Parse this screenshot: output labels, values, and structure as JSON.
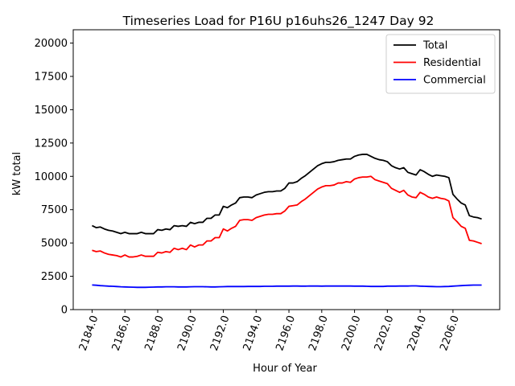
{
  "chart_data": {
    "type": "line",
    "title": "Timeseries Load for P16U p16uhs26_1247  Day 92",
    "xlabel": "Hour of Year",
    "ylabel": "kW total",
    "xlim": [
      2182.85,
      2208.85
    ],
    "ylim": [
      0,
      21000
    ],
    "xticks": [
      2184,
      2186,
      2188,
      2190,
      2192,
      2194,
      2196,
      2198,
      2200,
      2202,
      2204,
      2206
    ],
    "xtick_labels": [
      "2184.0",
      "2186.0",
      "2188.0",
      "2190.0",
      "2192.0",
      "2194.0",
      "2196.0",
      "2198.0",
      "2200.0",
      "2202.0",
      "2204.0",
      "2206.0"
    ],
    "yticks": [
      0,
      2500,
      5000,
      7500,
      10000,
      12500,
      15000,
      17500,
      20000
    ],
    "ytick_labels": [
      "0",
      "2500",
      "5000",
      "7500",
      "10000",
      "12500",
      "15000",
      "17500",
      "20000"
    ],
    "legend_position": "top-right",
    "grid": false,
    "x": [
      2184.0,
      2184.25,
      2184.5,
      2184.75,
      2185.0,
      2185.25,
      2185.5,
      2185.75,
      2186.0,
      2186.25,
      2186.5,
      2186.75,
      2187.0,
      2187.25,
      2187.5,
      2187.75,
      2188.0,
      2188.25,
      2188.5,
      2188.75,
      2189.0,
      2189.25,
      2189.5,
      2189.75,
      2190.0,
      2190.25,
      2190.5,
      2190.75,
      2191.0,
      2191.25,
      2191.5,
      2191.75,
      2192.0,
      2192.25,
      2192.5,
      2192.75,
      2193.0,
      2193.25,
      2193.5,
      2193.75,
      2194.0,
      2194.25,
      2194.5,
      2194.75,
      2195.0,
      2195.25,
      2195.5,
      2195.75,
      2196.0,
      2196.25,
      2196.5,
      2196.75,
      2197.0,
      2197.25,
      2197.5,
      2197.75,
      2198.0,
      2198.25,
      2198.5,
      2198.75,
      2199.0,
      2199.25,
      2199.5,
      2199.75,
      2200.0,
      2200.25,
      2200.5,
      2200.75,
      2201.0,
      2201.25,
      2201.5,
      2201.75,
      2202.0,
      2202.25,
      2202.5,
      2202.75,
      2203.0,
      2203.25,
      2203.5,
      2203.75,
      2204.0,
      2204.25,
      2204.5,
      2204.75,
      2205.0,
      2205.25,
      2205.5,
      2205.75,
      2206.0,
      2206.25,
      2206.5,
      2206.75,
      2207.0,
      2207.25,
      2207.5,
      2207.75
    ],
    "series": [
      {
        "name": "Total",
        "color": "#000000",
        "values": [
          6300,
          6150,
          6200,
          6050,
          5950,
          5900,
          5800,
          5700,
          5800,
          5700,
          5700,
          5700,
          5800,
          5700,
          5700,
          5700,
          6000,
          5950,
          6050,
          6000,
          6300,
          6250,
          6300,
          6250,
          6550,
          6450,
          6550,
          6550,
          6850,
          6850,
          7100,
          7100,
          7750,
          7650,
          7850,
          8000,
          8400,
          8450,
          8450,
          8400,
          8600,
          8700,
          8800,
          8850,
          8850,
          8900,
          8900,
          9100,
          9500,
          9500,
          9600,
          9850,
          10050,
          10300,
          10550,
          10800,
          10950,
          11050,
          11050,
          11100,
          11200,
          11250,
          11300,
          11300,
          11500,
          11600,
          11650,
          11650,
          11500,
          11350,
          11250,
          11200,
          11100,
          10800,
          10650,
          10550,
          10650,
          10300,
          10200,
          10100,
          10500,
          10350,
          10150,
          10000,
          10100,
          10050,
          10000,
          9900,
          8650,
          8300,
          8000,
          7850,
          7050,
          6950,
          6900,
          6800
        ]
      },
      {
        "name": "Residential",
        "color": "#ff0000",
        "values": [
          4450,
          4350,
          4400,
          4250,
          4150,
          4100,
          4050,
          3950,
          4100,
          3950,
          3950,
          4000,
          4100,
          4000,
          4000,
          4000,
          4300,
          4250,
          4350,
          4300,
          4600,
          4500,
          4600,
          4500,
          4850,
          4700,
          4850,
          4850,
          5150,
          5150,
          5400,
          5400,
          6050,
          5900,
          6100,
          6250,
          6700,
          6750,
          6750,
          6700,
          6900,
          7000,
          7100,
          7150,
          7150,
          7200,
          7200,
          7400,
          7750,
          7800,
          7850,
          8100,
          8300,
          8550,
          8800,
          9050,
          9200,
          9300,
          9300,
          9350,
          9500,
          9500,
          9600,
          9550,
          9800,
          9900,
          9950,
          9950,
          10000,
          9750,
          9650,
          9550,
          9450,
          9100,
          8950,
          8800,
          8950,
          8600,
          8450,
          8400,
          8800,
          8650,
          8450,
          8350,
          8450,
          8350,
          8300,
          8150,
          6900,
          6600,
          6250,
          6100,
          5200,
          5150,
          5050,
          4950
        ]
      },
      {
        "name": "Commercial",
        "color": "#0000ff",
        "values": [
          1850,
          1830,
          1800,
          1780,
          1760,
          1750,
          1730,
          1710,
          1700,
          1690,
          1680,
          1670,
          1670,
          1670,
          1680,
          1690,
          1700,
          1700,
          1710,
          1710,
          1710,
          1700,
          1700,
          1700,
          1710,
          1720,
          1720,
          1720,
          1710,
          1700,
          1700,
          1710,
          1720,
          1730,
          1730,
          1730,
          1730,
          1730,
          1740,
          1740,
          1740,
          1740,
          1750,
          1750,
          1750,
          1760,
          1760,
          1760,
          1760,
          1770,
          1770,
          1760,
          1760,
          1770,
          1770,
          1770,
          1760,
          1770,
          1770,
          1770,
          1770,
          1770,
          1770,
          1770,
          1760,
          1760,
          1760,
          1750,
          1740,
          1740,
          1740,
          1740,
          1760,
          1760,
          1760,
          1770,
          1770,
          1770,
          1780,
          1780,
          1760,
          1750,
          1740,
          1730,
          1720,
          1720,
          1730,
          1740,
          1760,
          1780,
          1800,
          1820,
          1830,
          1840,
          1840,
          1840
        ]
      }
    ]
  }
}
